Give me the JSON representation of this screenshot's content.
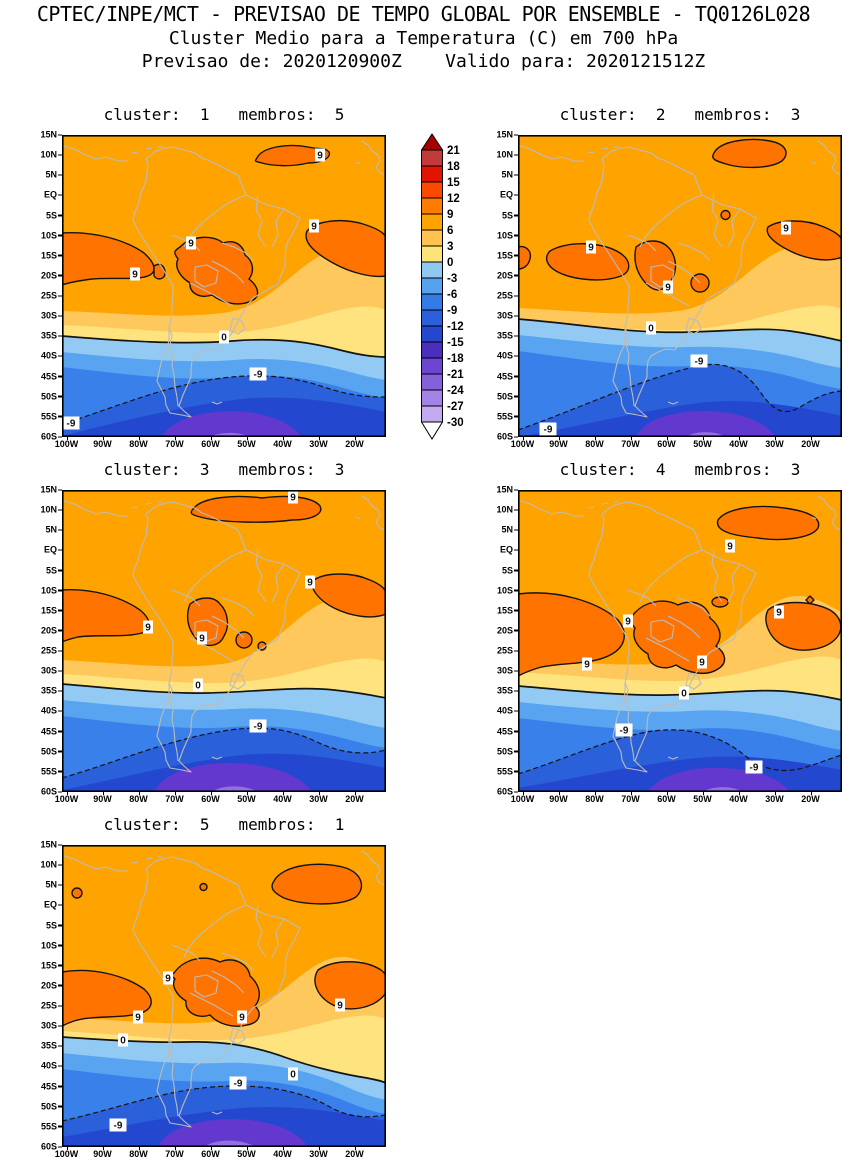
{
  "header": {
    "line1": "CPTEC/INPE/MCT - PREVISAO DE TEMPO GLOBAL POR ENSEMBLE - TQ0126L028",
    "line2": "Cluster Medio para a Temperatura (C) em 700 hPa",
    "line3": "Previsao de: 2020120900Z    Valido para: 2020121512Z"
  },
  "axes": {
    "lat_labels": [
      "15N",
      "10N",
      "5N",
      "EQ",
      "5S",
      "10S",
      "15S",
      "20S",
      "25S",
      "30S",
      "35S",
      "40S",
      "45S",
      "50S",
      "55S",
      "60S"
    ],
    "lon_labels": [
      "100W",
      "90W",
      "80W",
      "70W",
      "60W",
      "50W",
      "40W",
      "30W",
      "20W"
    ]
  },
  "colorbar": {
    "labels": [
      "21",
      "18",
      "15",
      "12",
      "9",
      "6",
      "3",
      "0",
      "-3",
      "-6",
      "-9",
      "-12",
      "-15",
      "-18",
      "-21",
      "-24",
      "-27",
      "-30"
    ],
    "box_colors": [
      "#C23B3B",
      "#E11400",
      "#FB4A00",
      "#FF7C00",
      "#FFA301",
      "#FFC34F",
      "#FFE377",
      "#8FC9F2",
      "#56A2EF",
      "#337CE8",
      "#2A60DA",
      "#2347CE",
      "#4C2EBE",
      "#6A46D2",
      "#8560DC",
      "#A383E7",
      "#C3A9F0"
    ],
    "arrow_top_color": "#A80000",
    "arrow_bottom_color": "#FFFFFF"
  },
  "panels": [
    {
      "title": "cluster:  1   membros:  5",
      "cluster": "1",
      "membros": "5",
      "contour_labels": [
        "9",
        "9",
        "9",
        "9",
        "0",
        "-9",
        "-9"
      ]
    },
    {
      "title": "cluster:  2   membros:  3",
      "cluster": "2",
      "membros": "3",
      "contour_labels": [
        "9",
        "9",
        "9",
        "0",
        "-9",
        "-9"
      ]
    },
    {
      "title": "cluster:  3   membros:  3",
      "cluster": "3",
      "membros": "3",
      "contour_labels": [
        "9",
        "9",
        "9",
        "9",
        "0",
        "-9"
      ]
    },
    {
      "title": "cluster:  4   membros:  3",
      "cluster": "4",
      "membros": "3",
      "contour_labels": [
        "9",
        "9",
        "9",
        "9",
        "9",
        "0",
        "-9",
        "-9"
      ]
    },
    {
      "title": "cluster:  5   membros:  1",
      "cluster": "5",
      "membros": "1",
      "contour_labels": [
        "9",
        "9",
        "9",
        "9",
        "0",
        "0",
        "-9",
        "-9"
      ]
    }
  ],
  "chart_data": {
    "type": "heatmap",
    "subtype": "filled-contour-map-ensemble-clusters",
    "title": "CPTEC/INPE/MCT - PREVISAO DE TEMPO GLOBAL POR ENSEMBLE - TQ0126L028",
    "subtitle": "Cluster Medio para a Temperatura (C) em 700 hPa",
    "init_time": "2020120900Z",
    "valid_time": "2020121512Z",
    "variable": "Temperatura (C)",
    "level": "700 hPa",
    "panels": [
      {
        "cluster": 1,
        "membros": 5,
        "labeled_contours": [
          9,
          0,
          -9
        ]
      },
      {
        "cluster": 2,
        "membros": 3,
        "labeled_contours": [
          9,
          0,
          -9
        ]
      },
      {
        "cluster": 3,
        "membros": 3,
        "labeled_contours": [
          9,
          0,
          -9
        ]
      },
      {
        "cluster": 4,
        "membros": 3,
        "labeled_contours": [
          9,
          0,
          -9
        ]
      },
      {
        "cluster": 5,
        "membros": 1,
        "labeled_contours": [
          9,
          0,
          -9
        ]
      }
    ],
    "colorbar_levels": [
      21,
      18,
      15,
      12,
      9,
      6,
      3,
      0,
      -3,
      -6,
      -9,
      -12,
      -15,
      -18,
      -21,
      -24,
      -27,
      -30
    ],
    "contour_interval": 3,
    "x_axis": {
      "tick_labels": [
        "100W",
        "90W",
        "80W",
        "70W",
        "60W",
        "50W",
        "40W",
        "30W",
        "20W"
      ],
      "range": [
        "101W",
        "11W"
      ]
    },
    "y_axis": {
      "tick_labels": [
        "15N",
        "10N",
        "5N",
        "EQ",
        "5S",
        "10S",
        "15S",
        "20S",
        "25S",
        "30S",
        "35S",
        "40S",
        "45S",
        "50S",
        "55S",
        "60S"
      ],
      "range": [
        "15N",
        "60S"
      ]
    },
    "region": "South America",
    "legend_position": "vertical colorbar between panel 1 and panel 2",
    "field_description": "700 hPa mean temperature per ensemble cluster; warm orange field (6-9C) over tropics with 9C cores, 0C contour near 35S, dashed -9C contour near 45-55S, coldest (-15 to -21C) pocket near 55-60S"
  }
}
